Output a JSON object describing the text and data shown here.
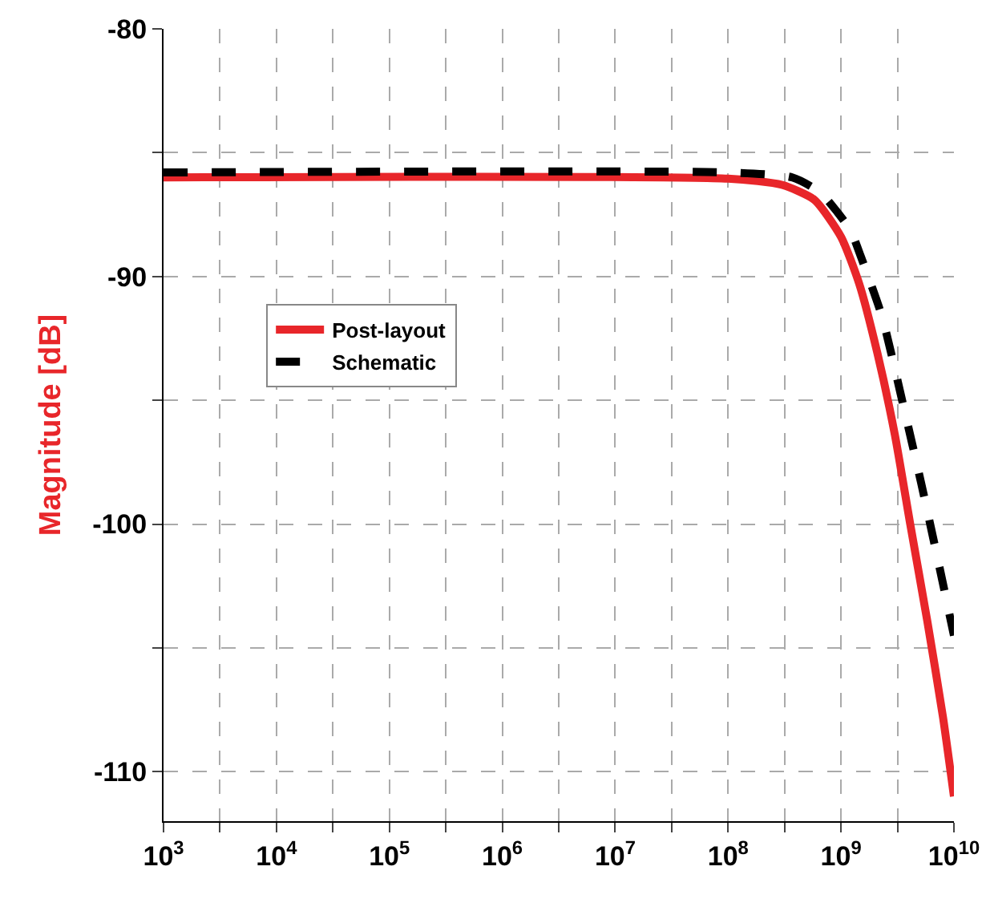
{
  "chart_data": {
    "type": "line",
    "ylabel": "Magnitude [dB]",
    "log": "x",
    "grid": true,
    "legend": "left",
    "marker": "none",
    "xlim": [
      1000,
      10000000000
    ],
    "xticks": [
      {
        "value": 1000,
        "label": "10$^{3}$"
      },
      {
        "value": 3162,
        "label": null
      },
      {
        "value": 10000,
        "label": "10$^{4}$"
      },
      {
        "value": 31623,
        "label": null
      },
      {
        "value": 100000,
        "label": "10$^{5}$"
      },
      {
        "value": 316228,
        "label": null
      },
      {
        "value": 1000000,
        "label": "10$^{6}$"
      },
      {
        "value": 3162278,
        "label": null
      },
      {
        "value": 10000000,
        "label": "10$^{7}$"
      },
      {
        "value": 31622777,
        "label": null
      },
      {
        "value": 100000000,
        "label": "10$^{8}$"
      },
      {
        "value": 316227766,
        "label": null
      },
      {
        "value": 1000000000,
        "label": "10$^{9}$"
      },
      {
        "value": 3162277660,
        "label": null
      },
      {
        "value": 10000000000,
        "label": "10$^{10}$"
      }
    ],
    "ylim": [
      -112,
      -80
    ],
    "yticks": [
      -80,
      {
        "value": -85,
        "label": null
      },
      -90,
      {
        "value": -95,
        "label": null
      },
      -100,
      {
        "value": -105,
        "label": null
      },
      -110
    ],
    "series": [
      {
        "name": "Post-layout",
        "color": "#e8262a",
        "line_style": "solid",
        "x": [
          1000,
          100000000,
          300000000,
          580000000,
          1000000000,
          1450000000,
          2100000000,
          3000000000,
          4100000000,
          5800000000,
          8000000000,
          10000000000
        ],
        "values": [
          -86,
          -86.05,
          -86.3,
          -86.9,
          -88.4,
          -90.3,
          -93.1,
          -96.4,
          -100,
          -103.9,
          -107.8,
          -111
        ]
      },
      {
        "name": "Schematic",
        "color": "#000000",
        "line_style": "dashed",
        "x": [
          1000,
          100000000,
          370000000,
          650000000,
          1200000000,
          1500000000,
          2300000000,
          3600000000,
          5100000000,
          7100000000,
          10000000000
        ],
        "values": [
          -85.8,
          -85.8,
          -86,
          -86.6,
          -88.1,
          -89.2,
          -91.6,
          -95.3,
          -98.3,
          -101.3,
          -104.5
        ]
      }
    ]
  }
}
